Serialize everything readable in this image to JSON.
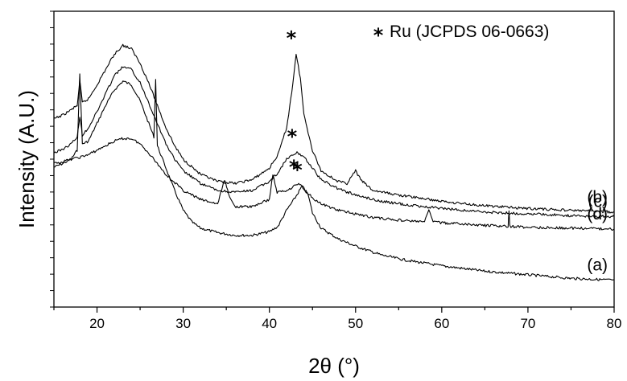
{
  "chart_data": {
    "type": "line",
    "xlabel": "2θ (°)",
    "ylabel": "Intensity (A.U.)",
    "xlim": [
      15,
      80
    ],
    "x_ticks": [
      20,
      30,
      40,
      50,
      60,
      70,
      80
    ],
    "y_ticks_labeled": false,
    "grid": false,
    "legend": {
      "marker": "*",
      "text": "Ru (JCPDS 06-0663)",
      "position": "top-right"
    },
    "series": [
      {
        "name": "(a)",
        "annotation_marker": "*",
        "annotation_x": 43.8,
        "points": [
          [
            15,
            1.86
          ],
          [
            16,
            1.9
          ],
          [
            17,
            1.95
          ],
          [
            17.7,
            2.05
          ],
          [
            18.0,
            2.9
          ],
          [
            18.3,
            2.12
          ],
          [
            19,
            2.15
          ],
          [
            20,
            2.35
          ],
          [
            21,
            2.55
          ],
          [
            22,
            2.72
          ],
          [
            23,
            2.82
          ],
          [
            24,
            2.78
          ],
          [
            25,
            2.6
          ],
          [
            26,
            2.35
          ],
          [
            26.6,
            2.2
          ],
          [
            26.8,
            2.85
          ],
          [
            27.0,
            2.1
          ],
          [
            28,
            1.85
          ],
          [
            29,
            1.6
          ],
          [
            30,
            1.38
          ],
          [
            31,
            1.25
          ],
          [
            32,
            1.18
          ],
          [
            34,
            1.13
          ],
          [
            36,
            1.1
          ],
          [
            38,
            1.1
          ],
          [
            40,
            1.14
          ],
          [
            41,
            1.2
          ],
          [
            42,
            1.38
          ],
          [
            43,
            1.52
          ],
          [
            43.8,
            1.65
          ],
          [
            44.5,
            1.55
          ],
          [
            45,
            1.35
          ],
          [
            46,
            1.18
          ],
          [
            48,
            1.06
          ],
          [
            50,
            0.98
          ],
          [
            53,
            0.88
          ],
          [
            56,
            0.82
          ],
          [
            60,
            0.76
          ],
          [
            65,
            0.7
          ],
          [
            70,
            0.66
          ],
          [
            75,
            0.62
          ],
          [
            80,
            0.6
          ]
        ]
      },
      {
        "name": "(b)",
        "annotation_marker": "*",
        "annotation_x": 43.1,
        "points": [
          [
            15,
            2.4
          ],
          [
            16,
            2.44
          ],
          [
            17,
            2.5
          ],
          [
            17.7,
            2.55
          ],
          [
            18.0,
            2.82
          ],
          [
            18.3,
            2.58
          ],
          [
            19,
            2.62
          ],
          [
            20,
            2.78
          ],
          [
            21,
            2.95
          ],
          [
            22,
            3.12
          ],
          [
            23,
            3.22
          ],
          [
            24,
            3.18
          ],
          [
            25,
            3.02
          ],
          [
            26,
            2.8
          ],
          [
            27,
            2.55
          ],
          [
            28,
            2.3
          ],
          [
            29,
            2.1
          ],
          [
            30,
            1.95
          ],
          [
            32,
            1.78
          ],
          [
            34,
            1.7
          ],
          [
            36,
            1.68
          ],
          [
            38,
            1.72
          ],
          [
            40,
            1.85
          ],
          [
            41,
            2.0
          ],
          [
            42,
            2.3
          ],
          [
            42.6,
            2.7
          ],
          [
            43.1,
            3.12
          ],
          [
            43.6,
            2.85
          ],
          [
            44,
            2.45
          ],
          [
            45,
            2.05
          ],
          [
            46,
            1.82
          ],
          [
            48,
            1.7
          ],
          [
            49,
            1.68
          ],
          [
            50,
            1.82
          ],
          [
            50.6,
            1.72
          ],
          [
            52,
            1.6
          ],
          [
            55,
            1.55
          ],
          [
            60,
            1.48
          ],
          [
            65,
            1.43
          ],
          [
            70,
            1.4
          ],
          [
            75,
            1.38
          ],
          [
            80,
            1.36
          ]
        ]
      },
      {
        "name": "(c)",
        "annotation_marker": "*",
        "annotation_x": 43.2,
        "points": [
          [
            15,
            2.02
          ],
          [
            16,
            2.06
          ],
          [
            17,
            2.12
          ],
          [
            17.7,
            2.2
          ],
          [
            18.0,
            2.42
          ],
          [
            18.3,
            2.22
          ],
          [
            19,
            2.3
          ],
          [
            20,
            2.48
          ],
          [
            21,
            2.68
          ],
          [
            22,
            2.88
          ],
          [
            23,
            2.98
          ],
          [
            24,
            2.95
          ],
          [
            25,
            2.8
          ],
          [
            26,
            2.58
          ],
          [
            27,
            2.35
          ],
          [
            28,
            2.12
          ],
          [
            29,
            1.95
          ],
          [
            30,
            1.82
          ],
          [
            32,
            1.68
          ],
          [
            34,
            1.6
          ],
          [
            36,
            1.58
          ],
          [
            38,
            1.6
          ],
          [
            40,
            1.7
          ],
          [
            41,
            1.8
          ],
          [
            42,
            1.95
          ],
          [
            43.2,
            2.02
          ],
          [
            44,
            1.98
          ],
          [
            45,
            1.85
          ],
          [
            46,
            1.72
          ],
          [
            48,
            1.62
          ],
          [
            50,
            1.55
          ],
          [
            53,
            1.48
          ],
          [
            56,
            1.44
          ],
          [
            60,
            1.4
          ],
          [
            65,
            1.36
          ],
          [
            70,
            1.34
          ],
          [
            75,
            1.32
          ],
          [
            80,
            1.31
          ]
        ]
      },
      {
        "name": "(d)",
        "annotation_marker": "*",
        "annotation_x": 43.4,
        "points": [
          [
            15,
            1.9
          ],
          [
            16,
            1.92
          ],
          [
            17,
            1.95
          ],
          [
            18,
            1.97
          ],
          [
            19,
            2.0
          ],
          [
            20,
            2.05
          ],
          [
            21,
            2.1
          ],
          [
            22,
            2.15
          ],
          [
            23,
            2.18
          ],
          [
            24,
            2.18
          ],
          [
            25,
            2.12
          ],
          [
            26,
            2.02
          ],
          [
            27,
            1.9
          ],
          [
            28,
            1.78
          ],
          [
            30,
            1.6
          ],
          [
            32,
            1.5
          ],
          [
            34,
            1.45
          ],
          [
            34.8,
            1.72
          ],
          [
            35.5,
            1.5
          ],
          [
            36,
            1.42
          ],
          [
            38,
            1.42
          ],
          [
            40,
            1.5
          ],
          [
            40.4,
            1.78
          ],
          [
            40.9,
            1.58
          ],
          [
            42,
            1.6
          ],
          [
            43.4,
            1.68
          ],
          [
            44,
            1.62
          ],
          [
            45,
            1.52
          ],
          [
            46,
            1.45
          ],
          [
            48,
            1.38
          ],
          [
            50,
            1.34
          ],
          [
            52,
            1.3
          ],
          [
            55,
            1.27
          ],
          [
            58,
            1.25
          ],
          [
            58.5,
            1.38
          ],
          [
            59,
            1.26
          ],
          [
            60,
            1.24
          ],
          [
            65,
            1.21
          ],
          [
            67.7,
            1.2
          ],
          [
            67.8,
            1.38
          ],
          [
            67.9,
            1.2
          ],
          [
            70,
            1.19
          ],
          [
            75,
            1.18
          ],
          [
            80,
            1.17
          ]
        ]
      }
    ]
  }
}
